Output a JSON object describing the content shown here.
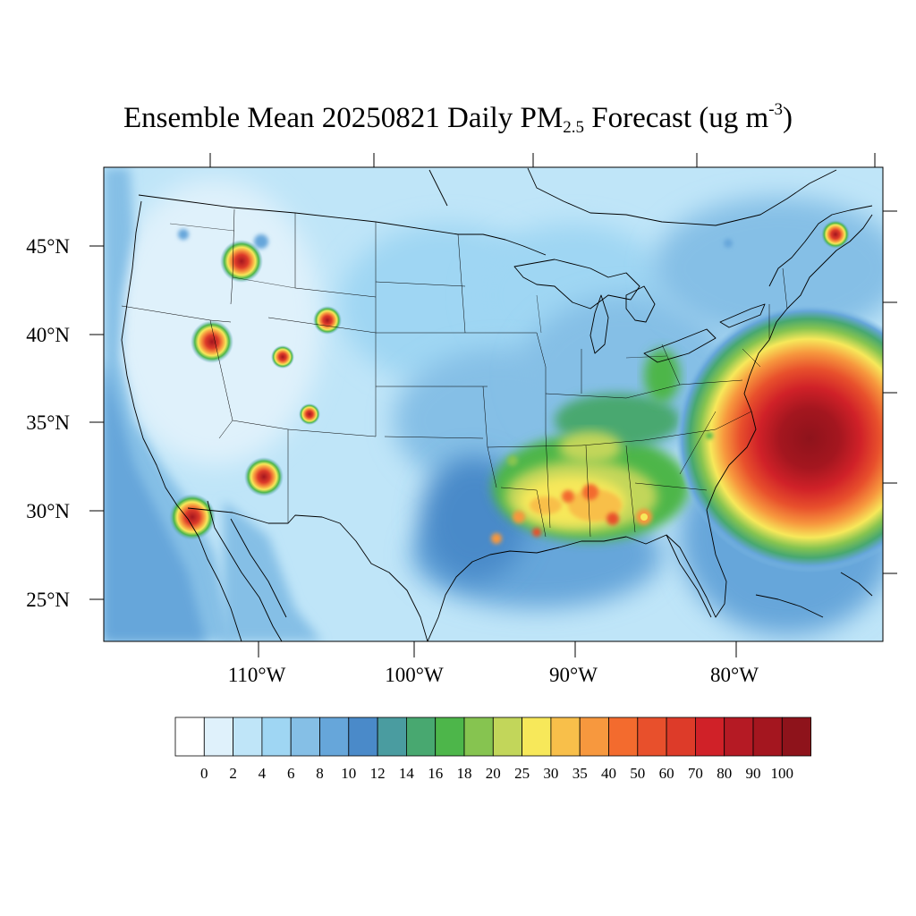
{
  "title": {
    "main": "Ensemble Mean 20250821 Daily PM",
    "sub": "2.5",
    "tail": " Forecast (ug m",
    "sup": "-3",
    "close": ")"
  },
  "map": {
    "lat_labels": [
      "45°N",
      "40°N",
      "35°N",
      "30°N",
      "25°N"
    ],
    "lon_labels": [
      "110°W",
      "100°W",
      "90°W",
      "80°W"
    ]
  },
  "colorbar": {
    "tick_labels": [
      "0",
      "2",
      "4",
      "6",
      "8",
      "10",
      "12",
      "14",
      "16",
      "18",
      "20",
      "25",
      "30",
      "35",
      "40",
      "50",
      "60",
      "70",
      "80",
      "90",
      "100"
    ],
    "colors": [
      "#ffffff",
      "#dff1fb",
      "#bfe5f8",
      "#9fd6f3",
      "#85bfe6",
      "#66a6da",
      "#4a8ac9",
      "#4a9ca0",
      "#48a870",
      "#4db64a",
      "#86c450",
      "#c2d65a",
      "#f7e85a",
      "#f8bf4a",
      "#f7983e",
      "#f36b2e",
      "#e8502c",
      "#dd3b29",
      "#d02128",
      "#b51a24",
      "#a4161f",
      "#8e131b"
    ]
  }
}
